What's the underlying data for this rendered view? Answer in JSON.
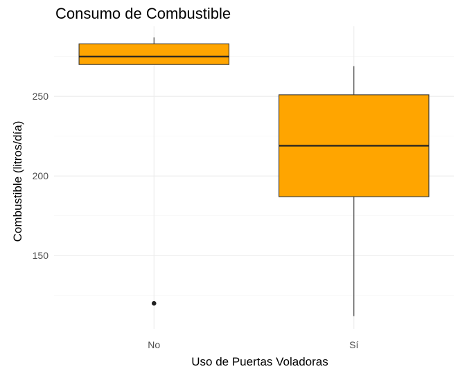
{
  "chart_data": {
    "type": "boxplot",
    "title": "Consumo de Combustible",
    "xlabel": "Uso de Puertas Voladoras",
    "ylabel": "Combustible (litros/día)",
    "categories": [
      "No",
      "Sí"
    ],
    "boxes": [
      {
        "category": "No",
        "lower_whisker": 270,
        "q1": 270,
        "median": 275,
        "q3": 283,
        "upper_whisker": 287,
        "outliers": [
          120
        ]
      },
      {
        "category": "Sí",
        "lower_whisker": 112,
        "q1": 187,
        "median": 219,
        "q3": 251,
        "upper_whisker": 269,
        "outliers": []
      }
    ],
    "ylim": [
      104,
      294
    ],
    "yticks": [
      150,
      200,
      250
    ],
    "y_minor": [
      125,
      175,
      225,
      275
    ],
    "grid": true,
    "fill_color": "#FFA500",
    "theme": "minimal"
  }
}
